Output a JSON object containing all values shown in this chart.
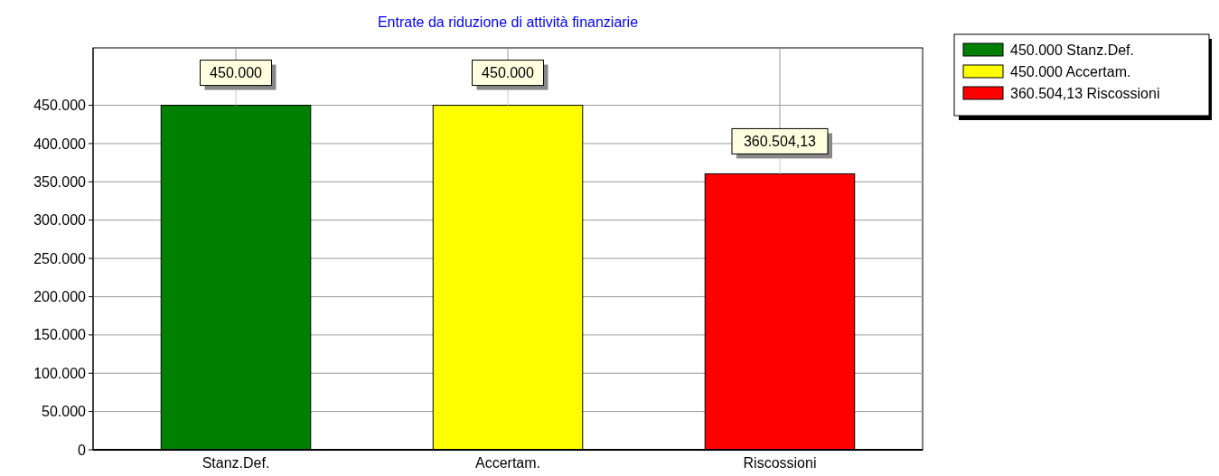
{
  "chart_data": {
    "type": "bar",
    "title": "Entrate da riduzione di attività finanziarie",
    "categories": [
      "Stanz.Def.",
      "Accertam.",
      "Riscossioni"
    ],
    "stacked": true,
    "series": [
      {
        "name": "450.000 Stanz.Def.",
        "color": "#008000",
        "values": [
          450000,
          null,
          null
        ],
        "value_labels": [
          "450.000",
          null,
          null
        ]
      },
      {
        "name": "450.000 Accertam.",
        "color": "#ffff00",
        "values": [
          null,
          450000,
          null
        ],
        "value_labels": [
          null,
          "450.000",
          null
        ]
      },
      {
        "name": "360.504,13 Riscossioni",
        "color": "#ff0000",
        "values": [
          null,
          null,
          360504.13
        ],
        "value_labels": [
          null,
          null,
          "360.504,13"
        ]
      }
    ],
    "ylim": [
      0,
      525000
    ],
    "yticks": [
      0,
      {
        "value": 50000,
        "label": "50.000"
      },
      {
        "value": 100000,
        "label": "100.000"
      },
      {
        "value": 150000,
        "label": "150.000"
      },
      {
        "value": 200000,
        "label": "200.000"
      },
      {
        "value": 250000,
        "label": "250.000"
      },
      {
        "value": 300000,
        "label": "300.000"
      },
      {
        "value": 350000,
        "label": "350.000"
      },
      {
        "value": 400000,
        "label": "400.000"
      },
      {
        "value": 450000,
        "label": "450.000"
      }
    ],
    "grid": true,
    "legend": "top right"
  }
}
